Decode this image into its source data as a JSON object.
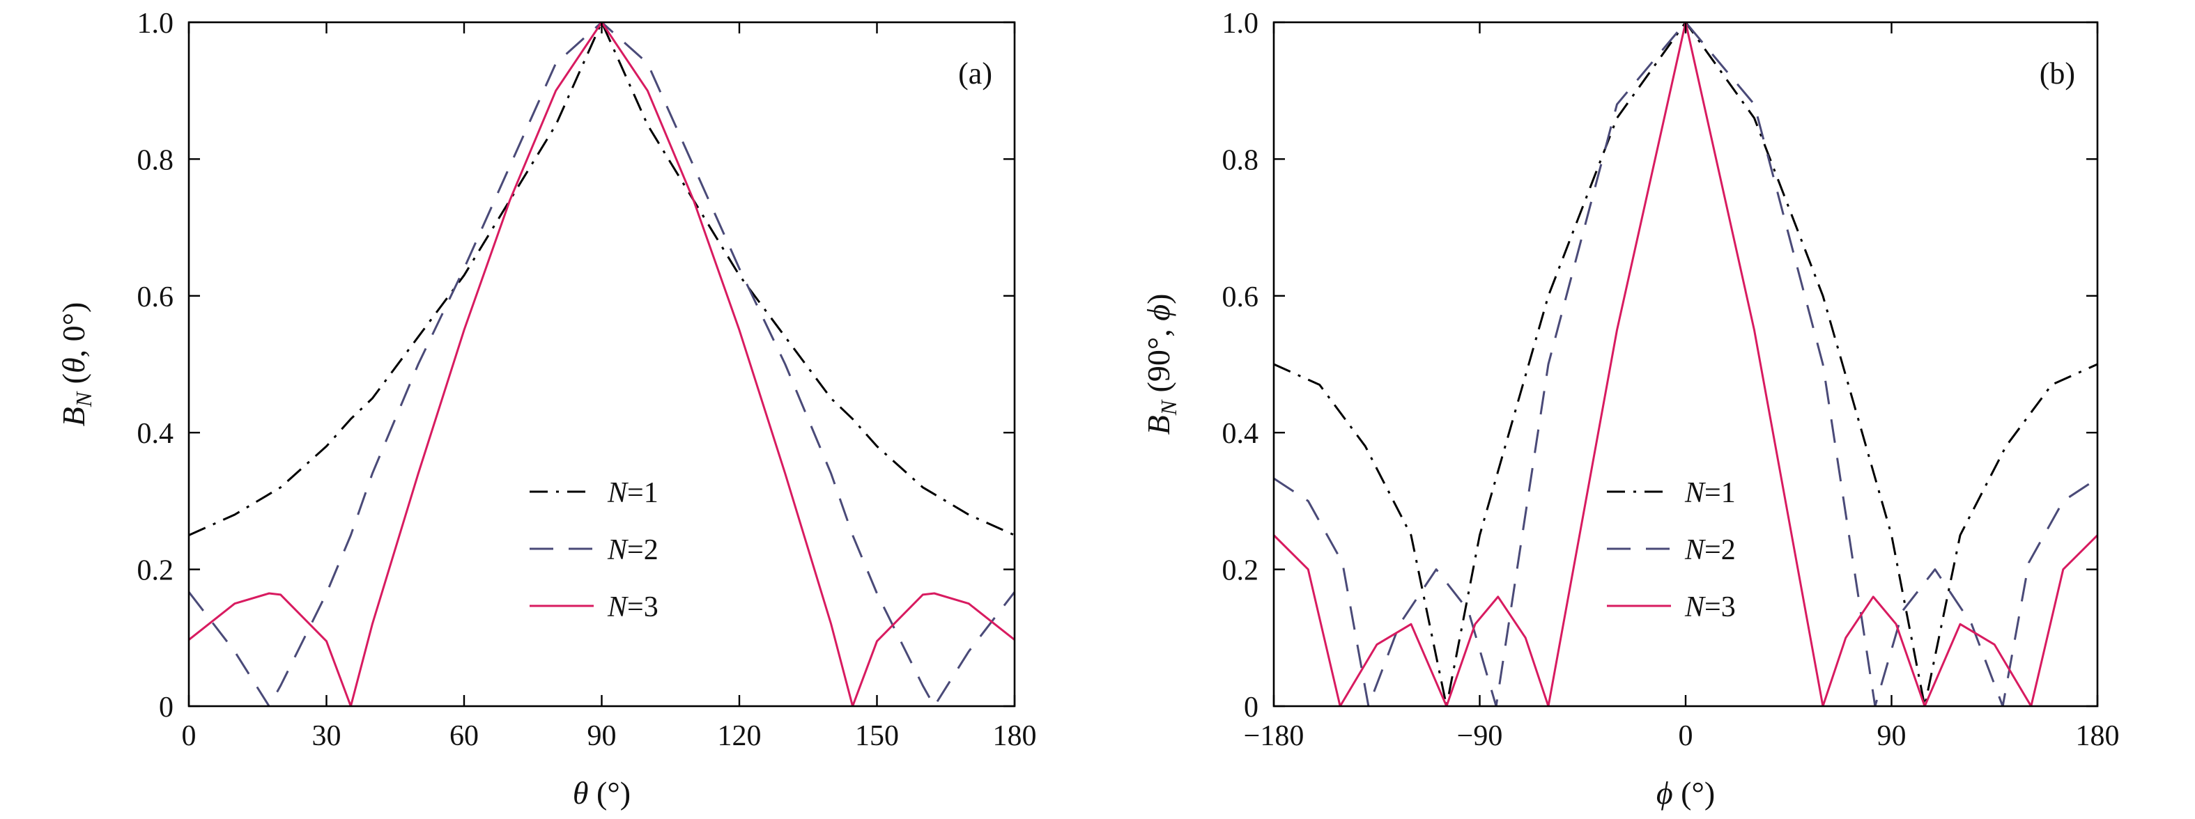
{
  "chart_data": [
    {
      "type": "line",
      "panel_label": "(a)",
      "xlabel": "θ (°)",
      "ylabel": "B_N (θ, 0°)",
      "xlim": [
        0,
        180
      ],
      "ylim": [
        0,
        1.0
      ],
      "xticks": [
        0,
        30,
        60,
        90,
        120,
        150,
        180
      ],
      "xtick_labels": [
        "0",
        "30",
        "60",
        "90",
        "120",
        "150",
        "180"
      ],
      "yticks": [
        0,
        0.2,
        0.4,
        0.6,
        0.8,
        1.0
      ],
      "ytick_labels": [
        "0",
        "0.2",
        "0.4",
        "0.6",
        "0.8",
        "1.0"
      ],
      "legend_position": "center-bottom",
      "grid": false,
      "x": [
        0,
        10,
        17.5,
        20,
        30,
        35.3,
        40,
        50,
        60,
        70,
        80,
        90,
        100,
        110,
        120,
        130,
        140,
        144.7,
        150,
        160,
        162.5,
        170,
        180
      ],
      "series": [
        {
          "name": "N=1",
          "style": "dash-dot",
          "color": "#000000",
          "values": [
            0.25,
            0.28,
            0.31,
            0.32,
            0.38,
            0.42,
            0.45,
            0.54,
            0.63,
            0.74,
            0.85,
            1.0,
            0.85,
            0.74,
            0.63,
            0.54,
            0.45,
            0.42,
            0.38,
            0.32,
            0.31,
            0.28,
            0.25
          ]
        },
        {
          "name": "N=2",
          "style": "dashed",
          "color": "#4a4a78",
          "values": [
            0.167,
            0.08,
            0.0,
            0.03,
            0.165,
            0.25,
            0.34,
            0.5,
            0.64,
            0.79,
            0.94,
            1.0,
            0.94,
            0.79,
            0.64,
            0.5,
            0.34,
            0.25,
            0.165,
            0.03,
            0.0,
            0.08,
            0.167
          ]
        },
        {
          "name": "N=3",
          "style": "solid",
          "color": "#d81b60",
          "values": [
            0.097,
            0.15,
            0.165,
            0.163,
            0.095,
            0.0,
            0.12,
            0.34,
            0.55,
            0.74,
            0.9,
            1.0,
            0.9,
            0.74,
            0.55,
            0.34,
            0.12,
            0.0,
            0.095,
            0.163,
            0.165,
            0.15,
            0.097
          ]
        }
      ]
    },
    {
      "type": "line",
      "panel_label": "(b)",
      "xlabel": "ϕ (°)",
      "ylabel": "B_N (90°, ϕ)",
      "xlim": [
        -180,
        180
      ],
      "ylim": [
        0,
        1.0
      ],
      "xticks": [
        -180,
        -90,
        0,
        90,
        180
      ],
      "xtick_labels": [
        "−180",
        "−90",
        "0",
        "90",
        "180"
      ],
      "yticks": [
        0,
        0.2,
        0.4,
        0.6,
        0.8,
        1.0
      ],
      "ytick_labels": [
        "0",
        "0.2",
        "0.4",
        "0.6",
        "0.8",
        "1.0"
      ],
      "legend_position": "center-bottom",
      "grid": false,
      "series": [
        {
          "name": "N=1",
          "style": "dash-dot",
          "color": "#000000",
          "x": [
            -180,
            -160,
            -140,
            -120,
            -104.5,
            -90,
            -60,
            -30,
            0,
            30,
            60,
            90,
            104.5,
            120,
            140,
            160,
            180
          ],
          "values": [
            0.5,
            0.47,
            0.38,
            0.25,
            0.0,
            0.25,
            0.6,
            0.86,
            1.0,
            0.86,
            0.6,
            0.25,
            0.0,
            0.25,
            0.38,
            0.47,
            0.5
          ]
        },
        {
          "name": "N=2",
          "style": "dashed",
          "color": "#4a4a78",
          "x": [
            -180,
            -165,
            -150,
            -138.6,
            -125,
            -109,
            -95,
            -82.8,
            -60,
            -30,
            0,
            30,
            60,
            82.8,
            95,
            109,
            125,
            138.6,
            150,
            165,
            180
          ],
          "values": [
            0.333,
            0.3,
            0.21,
            0.0,
            0.12,
            0.2,
            0.14,
            0.0,
            0.5,
            0.88,
            1.0,
            0.88,
            0.5,
            0.0,
            0.14,
            0.2,
            0.12,
            0.0,
            0.21,
            0.3,
            0.333
          ]
        },
        {
          "name": "N=3",
          "style": "solid",
          "color": "#d81b60",
          "x": [
            -180,
            -165,
            -151,
            -135,
            -120,
            -104.5,
            -92,
            -82,
            -70,
            -60,
            -30,
            0,
            30,
            60,
            70,
            82,
            92,
            104.5,
            120,
            135,
            151,
            165,
            180
          ],
          "values": [
            0.25,
            0.2,
            0.0,
            0.09,
            0.12,
            0.0,
            0.12,
            0.16,
            0.1,
            0.0,
            0.55,
            1.0,
            0.55,
            0.0,
            0.1,
            0.16,
            0.12,
            0.0,
            0.12,
            0.09,
            0.0,
            0.2,
            0.25
          ]
        }
      ]
    }
  ]
}
